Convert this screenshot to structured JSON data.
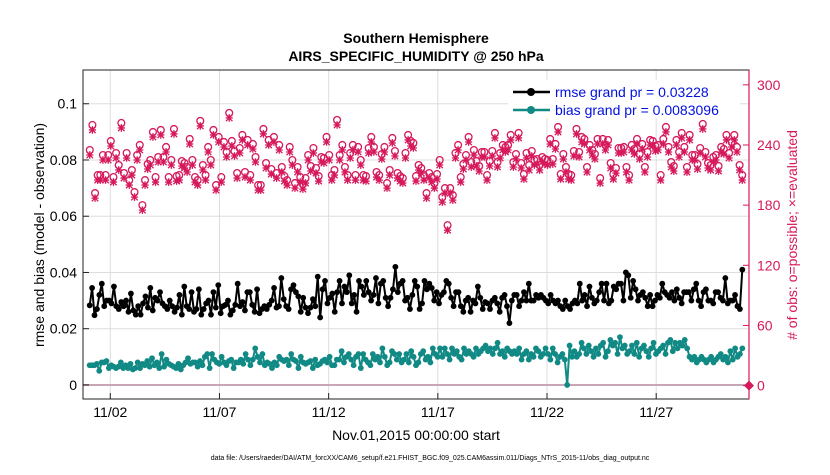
{
  "chart_data": {
    "type": "line",
    "title": "Southern Hemisphere",
    "subtitle": "AIRS_SPECIFIC_HUMIDITY @ 250 hPa",
    "xlabel": "Nov.01,2015 00:00:00 start",
    "ylabel": "rmse and bias (model - observation)",
    "y2label": "# of obs: o=possible; ×=evaluated",
    "footer": "data file: /Users/raeder/DAI/ATM_forcXX/CAM6_setup/f.e21.FHIST_BGC.f09_025.CAM6assim.011/Diags_NTrS_2015-11/obs_diag_output.nc",
    "xlim": [
      0.75,
      31.25
    ],
    "ylim": [
      -0.005,
      0.112
    ],
    "y2lim": [
      -13.4,
      314.8
    ],
    "xticks": [
      {
        "x": 2,
        "label": "11/02"
      },
      {
        "x": 7,
        "label": "11/07"
      },
      {
        "x": 12,
        "label": "11/12"
      },
      {
        "x": 17,
        "label": "11/17"
      },
      {
        "x": 22,
        "label": "11/22"
      },
      {
        "x": 27,
        "label": "11/27"
      }
    ],
    "yticks": [
      {
        "v": 0,
        "label": "0"
      },
      {
        "v": 0.02,
        "label": "0.02"
      },
      {
        "v": 0.04,
        "label": "0.04"
      },
      {
        "v": 0.06,
        "label": "0.06"
      },
      {
        "v": 0.08,
        "label": "0.08"
      },
      {
        "v": 0.1,
        "label": "0.1"
      }
    ],
    "y2ticks": [
      {
        "v": 0,
        "label": "0"
      },
      {
        "v": 60,
        "label": "60"
      },
      {
        "v": 120,
        "label": "120"
      },
      {
        "v": 180,
        "label": "180"
      },
      {
        "v": 240,
        "label": "240"
      },
      {
        "v": 300,
        "label": "300"
      }
    ],
    "grid": true,
    "legend_position": "top-right",
    "colors": {
      "rmse": "#000000",
      "bias": "#118a85",
      "obs": "#d6195c",
      "zero": "#c9a6b5",
      "grid": "#dddddd"
    },
    "series": [
      {
        "name": "rmse grand pr = 0.03228",
        "values": [
          0.0283,
          0.0345,
          0.0248,
          0.027,
          0.032,
          0.036,
          0.028,
          0.03,
          0.03,
          0.029,
          0.035,
          0.028,
          0.027,
          0.0295,
          0.028,
          0.03,
          0.026,
          0.0325,
          0.0265,
          0.025,
          0.028,
          0.025,
          0.029,
          0.0315,
          0.0275,
          0.0345,
          0.0265,
          0.031,
          0.03,
          0.033,
          0.029,
          0.028,
          0.027,
          0.03,
          0.028,
          0.026,
          0.0275,
          0.032,
          0.025,
          0.035,
          0.028,
          0.027,
          0.033,
          0.026,
          0.027,
          0.034,
          0.025,
          0.027,
          0.029,
          0.03,
          0.025,
          0.033,
          0.0275,
          0.0355,
          0.0255,
          0.028,
          0.0285,
          0.03,
          0.025,
          0.0265,
          0.0285,
          0.036,
          0.028,
          0.0295,
          0.0265,
          0.033,
          0.033,
          0.0285,
          0.026,
          0.034,
          0.0255,
          0.027,
          0.028,
          0.027,
          0.0285,
          0.03,
          0.0345,
          0.0275,
          0.028,
          0.038,
          0.0305,
          0.028,
          0.027,
          0.034,
          0.0355,
          0.033,
          0.0315,
          0.026,
          0.031,
          0.0275,
          0.0255,
          0.0275,
          0.0305,
          0.028,
          0.0385,
          0.024,
          0.034,
          0.037,
          0.029,
          0.031,
          0.0325,
          0.026,
          0.033,
          0.037,
          0.029,
          0.035,
          0.033,
          0.039,
          0.029,
          0.032,
          0.026,
          0.037,
          0.035,
          0.032,
          0.037,
          0.033,
          0.03,
          0.032,
          0.038,
          0.029,
          0.036,
          0.037,
          0.031,
          0.028,
          0.031,
          0.034,
          0.042,
          0.033,
          0.036,
          0.037,
          0.03,
          0.031,
          0.027,
          0.032,
          0.037,
          0.035,
          0.027,
          0.029,
          0.037,
          0.034,
          0.036,
          0.0345,
          0.03,
          0.033,
          0.029,
          0.032,
          0.033,
          0.037,
          0.036,
          0.031,
          0.028,
          0.033,
          0.033,
          0.028,
          0.026,
          0.03,
          0.031,
          0.026,
          0.03,
          0.029,
          0.035,
          0.031,
          0.027,
          0.0295,
          0.029,
          0.027,
          0.03,
          0.031,
          0.029,
          0.026,
          0.031,
          0.032,
          0.028,
          0.022,
          0.03,
          0.032,
          0.032,
          0.028,
          0.03,
          0.033,
          0.03,
          0.036,
          0.03,
          0.03,
          0.032,
          0.031,
          0.032,
          0.031,
          0.03,
          0.029,
          0.032,
          0.03,
          0.029,
          0.03,
          0.028,
          0.027,
          0.03,
          0.028,
          0.027,
          0.029,
          0.03,
          0.029,
          0.036,
          0.03,
          0.032,
          0.028,
          0.035,
          0.031,
          0.029,
          0.03,
          0.033,
          0.036,
          0.03,
          0.036,
          0.029,
          0.03,
          0.035,
          0.034,
          0.036,
          0.036,
          0.03,
          0.04,
          0.039,
          0.031,
          0.037,
          0.034,
          0.03,
          0.032,
          0.033,
          0.031,
          0.028,
          0.032,
          0.028,
          0.03,
          0.032,
          0.031,
          0.036,
          0.033,
          0.032,
          0.031,
          0.033,
          0.03,
          0.034,
          0.031,
          0.029,
          0.033,
          0.033,
          0.033,
          0.03,
          0.034,
          0.036,
          0.03,
          0.028,
          0.033,
          0.034,
          0.03,
          0.03,
          0.029,
          0.033,
          0.033,
          0.031,
          0.03,
          0.038,
          0.029,
          0.03,
          0.03,
          0.032,
          0.028,
          0.027,
          0.041
        ]
      },
      {
        "name": "bias grand pr = 0.0083096",
        "values": [
          0.007,
          0.007,
          0.007,
          0.0075,
          0.005,
          0.008,
          0.008,
          0.0085,
          0.006,
          0.007,
          0.0065,
          0.006,
          0.0065,
          0.008,
          0.006,
          0.007,
          0.006,
          0.0075,
          0.0055,
          0.006,
          0.008,
          0.006,
          0.0075,
          0.007,
          0.0085,
          0.0065,
          0.0095,
          0.007,
          0.008,
          0.006,
          0.011,
          0.0065,
          0.009,
          0.0075,
          0.007,
          0.0065,
          0.006,
          0.0075,
          0.0055,
          0.007,
          0.008,
          0.0095,
          0.0075,
          0.008,
          0.008,
          0.0065,
          0.0085,
          0.007,
          0.01,
          0.011,
          0.006,
          0.011,
          0.009,
          0.008,
          0.0075,
          0.01,
          0.008,
          0.007,
          0.0085,
          0.009,
          0.006,
          0.008,
          0.008,
          0.009,
          0.0075,
          0.011,
          0.009,
          0.007,
          0.009,
          0.013,
          0.01,
          0.008,
          0.011,
          0.007,
          0.008,
          0.0075,
          0.006,
          0.008,
          0.007,
          0.01,
          0.009,
          0.0085,
          0.009,
          0.007,
          0.011,
          0.009,
          0.0085,
          0.006,
          0.01,
          0.008,
          0.0075,
          0.008,
          0.0085,
          0.006,
          0.009,
          0.007,
          0.0075,
          0.0085,
          0.009,
          0.008,
          0.01,
          0.007,
          0.007,
          0.009,
          0.009,
          0.012,
          0.008,
          0.01,
          0.011,
          0.009,
          0.007,
          0.01,
          0.011,
          0.006,
          0.011,
          0.009,
          0.008,
          0.007,
          0.011,
          0.009,
          0.01,
          0.008,
          0.013,
          0.01,
          0.007,
          0.008,
          0.012,
          0.011,
          0.009,
          0.011,
          0.008,
          0.009,
          0.011,
          0.008,
          0.012,
          0.01,
          0.007,
          0.008,
          0.011,
          0.012,
          0.009,
          0.01,
          0.008,
          0.013,
          0.011,
          0.01,
          0.013,
          0.01,
          0.013,
          0.011,
          0.009,
          0.013,
          0.011,
          0.012,
          0.01,
          0.009,
          0.013,
          0.011,
          0.012,
          0.011,
          0.01,
          0.013,
          0.011,
          0.012,
          0.013,
          0.014,
          0.012,
          0.013,
          0.011,
          0.013,
          0.015,
          0.011,
          0.012,
          0.01,
          0.013,
          0.012,
          0.011,
          0.012,
          0.011,
          0.013,
          0.009,
          0.011,
          0.012,
          0.009,
          0.011,
          0.01,
          0.013,
          0.012,
          0.01,
          0.011,
          0.013,
          0.011,
          0.009,
          0.013,
          0.011,
          0.008,
          0.01,
          0.011,
          0.009,
          0.0,
          0.014,
          0.01,
          0.012,
          0.01,
          0.011,
          0.015,
          0.013,
          0.011,
          0.014,
          0.012,
          0.01,
          0.013,
          0.011,
          0.014,
          0.015,
          0.01,
          0.012,
          0.016,
          0.014,
          0.015,
          0.011,
          0.017,
          0.013,
          0.014,
          0.011,
          0.012,
          0.014,
          0.011,
          0.015,
          0.01,
          0.013,
          0.014,
          0.012,
          0.01,
          0.013,
          0.015,
          0.011,
          0.012,
          0.013,
          0.014,
          0.011,
          0.015,
          0.016,
          0.012,
          0.015,
          0.013,
          0.015,
          0.014,
          0.016,
          0.013,
          0.01,
          0.009,
          0.01,
          0.008,
          0.009,
          0.01,
          0.009,
          0.008,
          0.009,
          0.01,
          0.008,
          0.009,
          0.01,
          0.011,
          0.009,
          0.01,
          0.008,
          0.012,
          0.009,
          0.013,
          0.01,
          0.011,
          0.013
        ]
      },
      {
        "name": "possible",
        "values": [
          235,
          260,
          192,
          210,
          210,
          230,
          210,
          230,
          244,
          208,
          232,
          220,
          262,
          212,
          232,
          205,
          215,
          193,
          230,
          240,
          180,
          205,
          221,
          225,
          253,
          208,
          228,
          255,
          228,
          238,
          208,
          225,
          256,
          209,
          210,
          224,
          222,
          218,
          246,
          225,
          208,
          205,
          264,
          220,
          210,
          238,
          225,
          255,
          200,
          248,
          208,
          243,
          233,
          272,
          244,
          234,
          212,
          237,
          250,
          213,
          245,
          210,
          241,
          228,
          200,
          200,
          256,
          222,
          245,
          216,
          248,
          212,
          240,
          218,
          209,
          205,
          238,
          225,
          202,
          218,
          208,
          201,
          207,
          230,
          219,
          237,
          217,
          209,
          228,
          227,
          248,
          230,
          210,
          215,
          265,
          230,
          240,
          218,
          210,
          232,
          240,
          210,
          238,
          225,
          210,
          209,
          237,
          248,
          238,
          213,
          210,
          231,
          238,
          202,
          215,
          247,
          234,
          212,
          209,
          207,
          232,
          250,
          244,
          242,
          209,
          220,
          217,
          210,
          192,
          212,
          208,
          202,
          211,
          225,
          188,
          197,
          160,
          197,
          190,
          232,
          240,
          208,
          221,
          230,
          248,
          223,
          235,
          224,
          219,
          233,
          233,
          210,
          224,
          234,
          252,
          223,
          232,
          240,
          238,
          240,
          250,
          223,
          231,
          252,
          222,
          211,
          232,
          220,
          234,
          225,
          226,
          220,
          228,
          226,
          225,
          246,
          226,
          241,
          258,
          211,
          231,
          218,
          211,
          210,
          234,
          256,
          233,
          248,
          246,
          218,
          240,
          235,
          231,
          246,
          207,
          246,
          240,
          245,
          222,
          211,
          217,
          237,
          237,
          238,
          218,
          210,
          240,
          236,
          246,
          231,
          241,
          218,
          233,
          245,
          244,
          239,
          240,
          210,
          246,
          258,
          238,
          223,
          219,
          245,
          233,
          252,
          238,
          218,
          250,
          230,
          230,
          221,
          237,
          261,
          233,
          222,
          220,
          228,
          230,
          219,
          238,
          236,
          250,
          232,
          243,
          250,
          238,
          220,
          210
        ]
      }
    ]
  }
}
